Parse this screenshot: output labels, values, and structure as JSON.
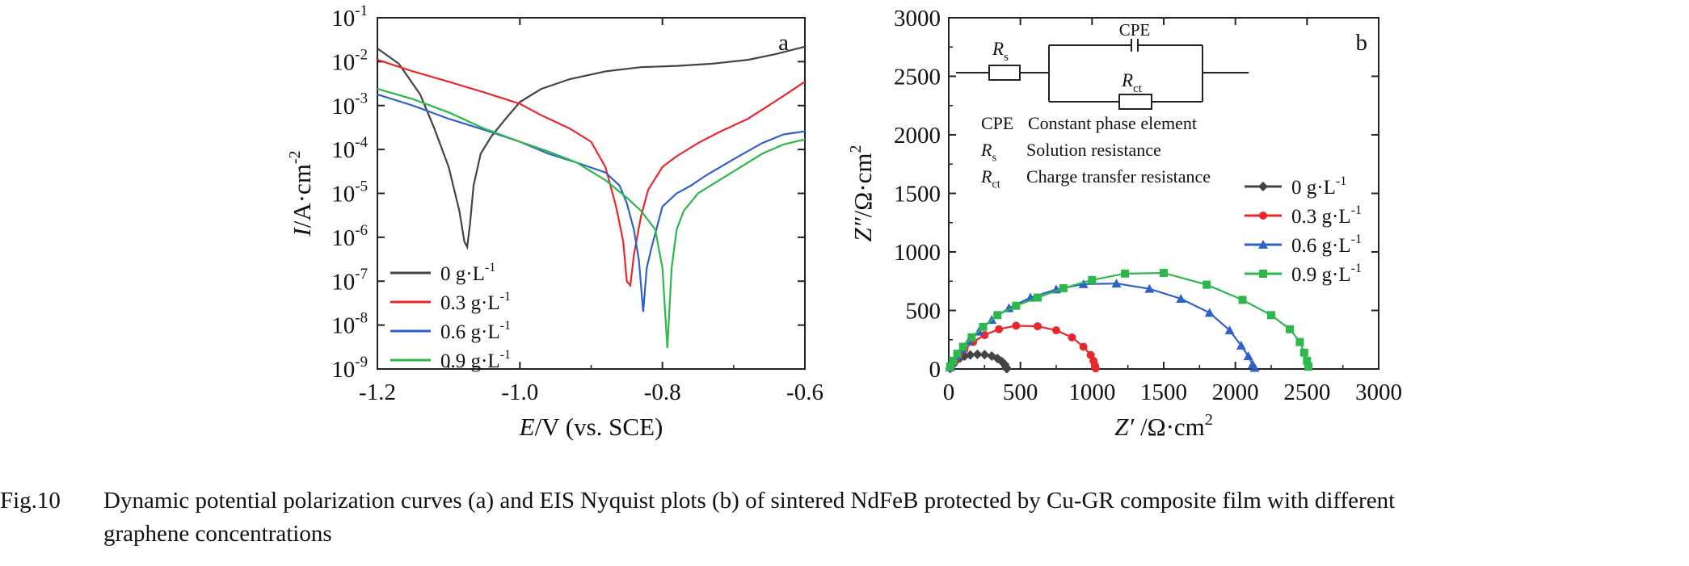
{
  "caption": {
    "label": "Fig.10",
    "line1": "Dynamic potential polarization curves (a) and EIS Nyquist plots (b) of sintered NdFeB protected by Cu-GR composite film with different",
    "line2": "graphene concentrations"
  },
  "colors": {
    "0 g·L-1": "#444444",
    "0.3 g·L-1": "#e8282d",
    "0.6 g·L-1": "#2f62c9",
    "0.9 g·L-1": "#2cb84a"
  },
  "chart_data": [
    {
      "type": "line",
      "panel_letter": "a",
      "xlabel": "E/V (vs. SCE)",
      "ylabel": "I/A·cm-2",
      "x_scale": "linear",
      "y_scale": "log",
      "xlim": [
        -1.2,
        -0.6
      ],
      "ylim": [
        1e-09,
        0.1
      ],
      "x_ticks": [
        "-1.2",
        "-1.0",
        "-0.8",
        "-0.6"
      ],
      "y_ticks": [
        "10-9",
        "10-8",
        "10-7",
        "10-6",
        "10-5",
        "10-4",
        "10-3",
        "10-2",
        "10-1"
      ],
      "legend_position": "bottom-left",
      "series": [
        {
          "name": "0 g·L-1",
          "points": [
            [
              -1.2,
              0.02
            ],
            [
              -1.17,
              0.009
            ],
            [
              -1.14,
              0.0018
            ],
            [
              -1.12,
              0.0003
            ],
            [
              -1.1,
              4e-05
            ],
            [
              -1.085,
              4e-06
            ],
            [
              -1.078,
              8e-07
            ],
            [
              -1.074,
              6e-07
            ],
            [
              -1.07,
              2e-06
            ],
            [
              -1.065,
              1.5e-05
            ],
            [
              -1.055,
              8e-05
            ],
            [
              -1.04,
              0.0002
            ],
            [
              -1.02,
              0.0005
            ],
            [
              -1.0,
              0.0012
            ],
            [
              -0.97,
              0.0024
            ],
            [
              -0.93,
              0.004
            ],
            [
              -0.88,
              0.006
            ],
            [
              -0.83,
              0.0075
            ],
            [
              -0.78,
              0.008
            ],
            [
              -0.73,
              0.009
            ],
            [
              -0.68,
              0.011
            ],
            [
              -0.64,
              0.015
            ],
            [
              -0.6,
              0.022
            ]
          ]
        },
        {
          "name": "0.3 g·L-1",
          "points": [
            [
              -1.2,
              0.011
            ],
            [
              -1.15,
              0.006
            ],
            [
              -1.1,
              0.0035
            ],
            [
              -1.05,
              0.002
            ],
            [
              -1.0,
              0.0011
            ],
            [
              -0.97,
              0.0006
            ],
            [
              -0.93,
              0.0003
            ],
            [
              -0.9,
              0.00015
            ],
            [
              -0.88,
              4e-05
            ],
            [
              -0.865,
              5e-06
            ],
            [
              -0.855,
              8e-07
            ],
            [
              -0.85,
              1e-07
            ],
            [
              -0.845,
              8e-08
            ],
            [
              -0.84,
              4e-07
            ],
            [
              -0.83,
              3e-06
            ],
            [
              -0.82,
              1.2e-05
            ],
            [
              -0.8,
              4e-05
            ],
            [
              -0.78,
              7e-05
            ],
            [
              -0.75,
              0.00014
            ],
            [
              -0.72,
              0.00025
            ],
            [
              -0.68,
              0.0005
            ],
            [
              -0.64,
              0.0013
            ],
            [
              -0.6,
              0.0035
            ]
          ]
        },
        {
          "name": "0.6 g·L-1",
          "points": [
            [
              -1.2,
              0.0018
            ],
            [
              -1.15,
              0.001
            ],
            [
              -1.1,
              0.0005
            ],
            [
              -1.05,
              0.00028
            ],
            [
              -1.0,
              0.00015
            ],
            [
              -0.96,
              8e-05
            ],
            [
              -0.92,
              5e-05
            ],
            [
              -0.88,
              3e-05
            ],
            [
              -0.86,
              1.5e-05
            ],
            [
              -0.85,
              6e-06
            ],
            [
              -0.84,
              1.5e-06
            ],
            [
              -0.833,
              3e-07
            ],
            [
              -0.827,
              2e-08
            ],
            [
              -0.822,
              2e-07
            ],
            [
              -0.815,
              6e-07
            ],
            [
              -0.8,
              5e-06
            ],
            [
              -0.78,
              1e-05
            ],
            [
              -0.76,
              1.5e-05
            ],
            [
              -0.74,
              2.5e-05
            ],
            [
              -0.7,
              6e-05
            ],
            [
              -0.66,
              0.00014
            ],
            [
              -0.63,
              0.00022
            ],
            [
              -0.6,
              0.00026
            ]
          ]
        },
        {
          "name": "0.9 g·L-1",
          "points": [
            [
              -1.2,
              0.0024
            ],
            [
              -1.15,
              0.0014
            ],
            [
              -1.1,
              0.0007
            ],
            [
              -1.05,
              0.0003
            ],
            [
              -1.0,
              0.00015
            ],
            [
              -0.96,
              9e-05
            ],
            [
              -0.92,
              5e-05
            ],
            [
              -0.88,
              2e-05
            ],
            [
              -0.85,
              8e-06
            ],
            [
              -0.83,
              4e-06
            ],
            [
              -0.81,
              1.5e-06
            ],
            [
              -0.8,
              2e-07
            ],
            [
              -0.793,
              3e-09
            ],
            [
              -0.787,
              2e-07
            ],
            [
              -0.78,
              1.5e-06
            ],
            [
              -0.77,
              4e-06
            ],
            [
              -0.75,
              1e-05
            ],
            [
              -0.72,
              2e-05
            ],
            [
              -0.69,
              4e-05
            ],
            [
              -0.66,
              8e-05
            ],
            [
              -0.63,
              0.00013
            ],
            [
              -0.6,
              0.00017
            ]
          ]
        }
      ]
    },
    {
      "type": "scatter",
      "panel_letter": "b",
      "xlabel": "Z′ /Ω·cm2",
      "ylabel": "Z″/Ω·cm2",
      "xlim": [
        0,
        3000
      ],
      "ylim": [
        0,
        3000
      ],
      "x_ticks": [
        "0",
        "500",
        "1000",
        "1500",
        "2000",
        "2500",
        "3000"
      ],
      "y_ticks": [
        "0",
        "500",
        "1000",
        "1500",
        "2000",
        "2500",
        "3000"
      ],
      "legend_position": "right",
      "inset": {
        "circuit_labels": {
          "cpe": "CPE",
          "rs": "R",
          "rs_sub": "s",
          "rct": "R",
          "rct_sub": "ct"
        },
        "definitions": [
          {
            "sym": "CPE",
            "sub": "",
            "text": "Constant phase element"
          },
          {
            "sym": "R",
            "sub": "s",
            "text": "Solution resistance"
          },
          {
            "sym": "R",
            "sub": "ct",
            "text": "Charge transfer resistance"
          }
        ]
      },
      "series": [
        {
          "name": "0 g·L-1",
          "marker": "diamond",
          "points": [
            [
              10,
              5
            ],
            [
              20,
              25
            ],
            [
              35,
              50
            ],
            [
              55,
              75
            ],
            [
              80,
              95
            ],
            [
              110,
              110
            ],
            [
              150,
              120
            ],
            [
              200,
              125
            ],
            [
              250,
              122
            ],
            [
              300,
              110
            ],
            [
              340,
              90
            ],
            [
              370,
              65
            ],
            [
              390,
              40
            ],
            [
              400,
              15
            ],
            [
              405,
              3
            ]
          ]
        },
        {
          "name": "0.3 g·L-1",
          "marker": "circle",
          "points": [
            [
              10,
              10
            ],
            [
              25,
              40
            ],
            [
              45,
              75
            ],
            [
              70,
              120
            ],
            [
              110,
              170
            ],
            [
              170,
              230
            ],
            [
              250,
              290
            ],
            [
              350,
              340
            ],
            [
              470,
              370
            ],
            [
              620,
              365
            ],
            [
              750,
              330
            ],
            [
              860,
              270
            ],
            [
              940,
              190
            ],
            [
              990,
              120
            ],
            [
              1010,
              70
            ],
            [
              1020,
              30
            ],
            [
              1025,
              5
            ]
          ]
        },
        {
          "name": "0.6 g·L-1",
          "marker": "triangle",
          "points": [
            [
              10,
              15
            ],
            [
              30,
              60
            ],
            [
              55,
              110
            ],
            [
              90,
              170
            ],
            [
              140,
              240
            ],
            [
              210,
              320
            ],
            [
              300,
              420
            ],
            [
              420,
              520
            ],
            [
              570,
              610
            ],
            [
              750,
              680
            ],
            [
              940,
              725
            ],
            [
              1170,
              730
            ],
            [
              1400,
              685
            ],
            [
              1620,
              600
            ],
            [
              1820,
              480
            ],
            [
              1960,
              330
            ],
            [
              2040,
              200
            ],
            [
              2090,
              110
            ],
            [
              2120,
              40
            ],
            [
              2135,
              10
            ]
          ]
        },
        {
          "name": "0.9 g·L-1",
          "marker": "square",
          "points": [
            [
              10,
              20
            ],
            [
              30,
              70
            ],
            [
              60,
              130
            ],
            [
              100,
              190
            ],
            [
              160,
              270
            ],
            [
              240,
              360
            ],
            [
              340,
              460
            ],
            [
              470,
              540
            ],
            [
              620,
              610
            ],
            [
              800,
              690
            ],
            [
              1000,
              760
            ],
            [
              1230,
              815
            ],
            [
              1500,
              820
            ],
            [
              1800,
              720
            ],
            [
              2050,
              590
            ],
            [
              2250,
              460
            ],
            [
              2380,
              340
            ],
            [
              2450,
              230
            ],
            [
              2480,
              140
            ],
            [
              2500,
              70
            ],
            [
              2510,
              20
            ]
          ]
        }
      ]
    }
  ]
}
